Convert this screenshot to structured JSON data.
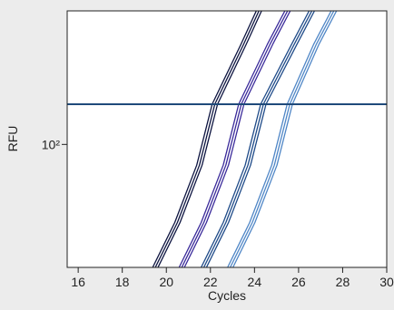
{
  "chart_data": {
    "type": "line",
    "title": "",
    "xlabel": "Cycles",
    "ylabel": "RFU",
    "xlim": [
      15.5,
      30
    ],
    "ylim": [
      12,
      1000
    ],
    "yscale": "log",
    "x_ticks": [
      16,
      18,
      20,
      22,
      24,
      26,
      28,
      30
    ],
    "y_ticks": [
      {
        "value": 100,
        "label": "10²"
      }
    ],
    "grid": false,
    "legend": "none",
    "threshold": {
      "y": 200,
      "color": "#1f4a7a"
    },
    "series": [
      {
        "color": "#0d1440",
        "replicates": 3,
        "points": [
          [
            19.5,
            12
          ],
          [
            20.5,
            26
          ],
          [
            21.5,
            70
          ],
          [
            22.2,
            200
          ],
          [
            23.5,
            560
          ],
          [
            24.2,
            1000
          ]
        ]
      },
      {
        "color": "#3a2a9a",
        "replicates": 3,
        "points": [
          [
            20.7,
            12
          ],
          [
            21.7,
            26
          ],
          [
            22.7,
            70
          ],
          [
            23.4,
            200
          ],
          [
            24.7,
            560
          ],
          [
            25.5,
            1000
          ]
        ]
      },
      {
        "color": "#1e4a88",
        "replicates": 3,
        "points": [
          [
            21.7,
            12
          ],
          [
            22.7,
            26
          ],
          [
            23.7,
            70
          ],
          [
            24.4,
            200
          ],
          [
            25.8,
            560
          ],
          [
            26.6,
            1000
          ]
        ]
      },
      {
        "color": "#4f86c6",
        "replicates": 3,
        "points": [
          [
            22.9,
            12
          ],
          [
            23.9,
            26
          ],
          [
            24.9,
            70
          ],
          [
            25.6,
            200
          ],
          [
            26.8,
            560
          ],
          [
            27.6,
            1000
          ]
        ]
      }
    ]
  }
}
